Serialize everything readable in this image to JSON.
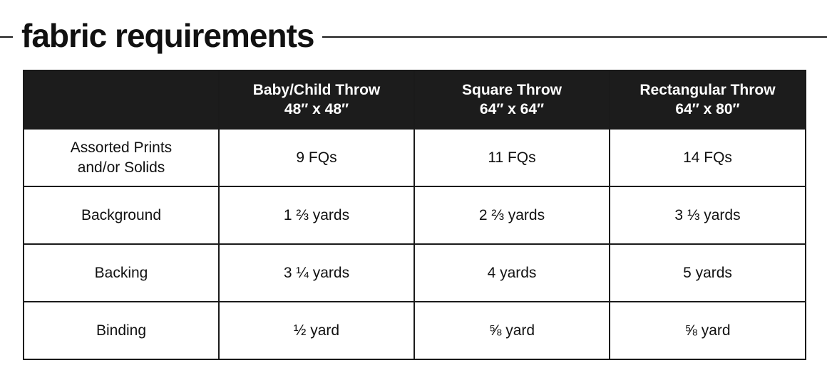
{
  "title": "fabric requirements",
  "header": {
    "columns": [
      {
        "name": "Baby/Child Throw",
        "size": "48″ x 48″"
      },
      {
        "name": "Square Throw",
        "size": "64″ x 64″"
      },
      {
        "name": "Rectangular Throw",
        "size": "64″ x 80″"
      }
    ]
  },
  "rows": [
    {
      "label_line1": "Assorted Prints",
      "label_line2": "and/or Solids",
      "values": [
        "9 FQs",
        "11 FQs",
        "14 FQs"
      ]
    },
    {
      "label_line1": "Background",
      "label_line2": "",
      "values": [
        "1 ⅔ yards",
        "2 ⅔ yards",
        "3 ⅓ yards"
      ]
    },
    {
      "label_line1": "Backing",
      "label_line2": "",
      "values": [
        "3 ¼ yards",
        "4 yards",
        "5 yards"
      ]
    },
    {
      "label_line1": "Binding",
      "label_line2": "",
      "values": [
        "½ yard",
        "⅝ yard",
        "⅝ yard"
      ]
    }
  ],
  "colors": {
    "header_bg": "#1c1c1c",
    "header_text": "#ffffff",
    "border": "#1a1a1a",
    "text": "#111111"
  }
}
